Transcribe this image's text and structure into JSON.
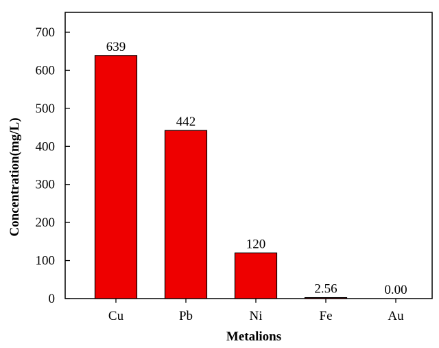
{
  "chart_data": {
    "type": "bar",
    "title": "",
    "xlabel": "Metalions",
    "ylabel": "Concentration(mg/L)",
    "categories": [
      "Cu",
      "Pb",
      "Ni",
      "Fe",
      "Au"
    ],
    "values": [
      639,
      442,
      120,
      2.56,
      0.0
    ],
    "data_labels": [
      "639",
      "442",
      "120",
      "2.56",
      "0.00"
    ],
    "ylim": [
      0,
      700
    ],
    "y_ticks": [
      0,
      100,
      200,
      300,
      400,
      500,
      600,
      700
    ],
    "bar_color": "#ee0000",
    "grid": false,
    "legend": "none"
  }
}
